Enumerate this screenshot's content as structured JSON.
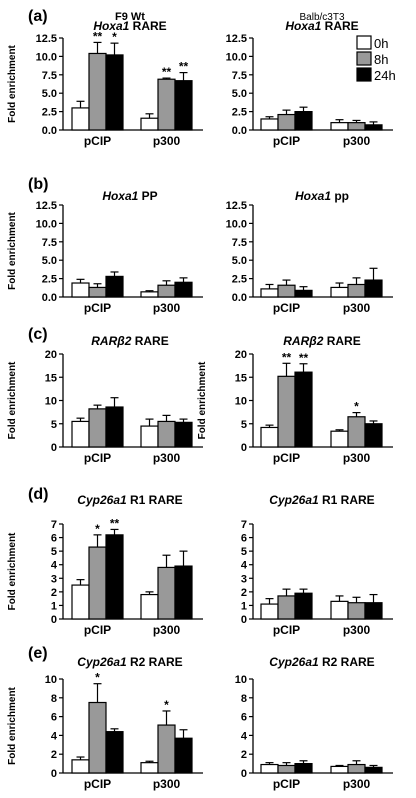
{
  "header": {
    "left_line1": "F9 Wt",
    "right_line1": "Balb/c3T3"
  },
  "legend": [
    "0h",
    "8h",
    "24h"
  ],
  "colors": {
    "0h": "#ffffff",
    "8h": "#999999",
    "24h": "#000000",
    "stroke": "#000000"
  },
  "chart_data": [
    {
      "type": "bar",
      "panel": "(a)",
      "column": "left",
      "gene": "Hoxa1",
      "element": "RARE",
      "ylabel": "Fold enrichment",
      "categories": [
        "pCIP",
        "p300"
      ],
      "ylim": [
        0,
        12.5
      ],
      "yticks": [
        "0.0",
        "2.5",
        "5.0",
        "7.5",
        "10.0",
        "12.5"
      ],
      "series": [
        {
          "name": "0h",
          "values": [
            3.0,
            1.6
          ],
          "errors": [
            0.9,
            0.6
          ]
        },
        {
          "name": "8h",
          "values": [
            10.4,
            6.9
          ],
          "errors": [
            1.5,
            0.15
          ]
        },
        {
          "name": "24h",
          "values": [
            10.2,
            6.7
          ],
          "errors": [
            1.6,
            1.1
          ]
        }
      ],
      "annotations": [
        [
          "",
          "**",
          "*"
        ],
        [
          "",
          "**",
          "**"
        ]
      ]
    },
    {
      "type": "bar",
      "panel": "",
      "column": "right",
      "gene": "Hoxa1",
      "element": "RARE",
      "ylabel": "",
      "categories": [
        "pCIP",
        "p300"
      ],
      "ylim": [
        0,
        12.5
      ],
      "yticks": [
        "0.0",
        "2.5",
        "5.0",
        "7.5",
        "10.0",
        "12.5"
      ],
      "series": [
        {
          "name": "0h",
          "values": [
            1.5,
            1.0
          ],
          "errors": [
            0.3,
            0.4
          ]
        },
        {
          "name": "8h",
          "values": [
            2.1,
            1.0
          ],
          "errors": [
            0.6,
            0.3
          ]
        },
        {
          "name": "24h",
          "values": [
            2.5,
            0.7
          ],
          "errors": [
            0.6,
            0.4
          ]
        }
      ],
      "annotations": [
        [
          "",
          "",
          ""
        ],
        [
          "",
          "",
          ""
        ]
      ]
    },
    {
      "type": "bar",
      "panel": "(b)",
      "column": "left",
      "gene": "Hoxa1",
      "element": "PP",
      "ylabel": "Fold enrichment",
      "categories": [
        "pCIP",
        "p300"
      ],
      "ylim": [
        0,
        12.5
      ],
      "yticks": [
        "0.0",
        "2.5",
        "5.0",
        "7.5",
        "10.0",
        "12.5"
      ],
      "series": [
        {
          "name": "0h",
          "values": [
            1.9,
            0.7
          ],
          "errors": [
            0.5,
            0.15
          ]
        },
        {
          "name": "8h",
          "values": [
            1.3,
            1.6
          ],
          "errors": [
            0.5,
            0.6
          ]
        },
        {
          "name": "24h",
          "values": [
            2.8,
            2.0
          ],
          "errors": [
            0.6,
            0.6
          ]
        }
      ],
      "annotations": [
        [
          "",
          "",
          ""
        ],
        [
          "",
          "",
          ""
        ]
      ]
    },
    {
      "type": "bar",
      "panel": "",
      "column": "right",
      "gene": "Hoxa1",
      "element": "pp",
      "ylabel": "",
      "categories": [
        "pCIP",
        "p300"
      ],
      "ylim": [
        0,
        12.5
      ],
      "yticks": [
        "0.0",
        "2.5",
        "5.0",
        "7.5",
        "10.0",
        "12.5"
      ],
      "series": [
        {
          "name": "0h",
          "values": [
            1.1,
            1.3
          ],
          "errors": [
            0.6,
            0.6
          ]
        },
        {
          "name": "8h",
          "values": [
            1.6,
            1.7
          ],
          "errors": [
            0.7,
            0.9
          ]
        },
        {
          "name": "24h",
          "values": [
            0.9,
            2.3
          ],
          "errors": [
            0.5,
            1.6
          ]
        }
      ],
      "annotations": [
        [
          "",
          "",
          ""
        ],
        [
          "",
          "",
          ""
        ]
      ]
    },
    {
      "type": "bar",
      "panel": "(c)",
      "column": "left",
      "gene": "RARβ2",
      "element": "RARE",
      "ylabel": "Fold enrichment",
      "categories": [
        "pCIP",
        "p300"
      ],
      "ylim": [
        0,
        20
      ],
      "yticks": [
        "0",
        "5",
        "10",
        "15",
        "20"
      ],
      "series": [
        {
          "name": "0h",
          "values": [
            5.5,
            4.5
          ],
          "errors": [
            0.7,
            1.5
          ]
        },
        {
          "name": "8h",
          "values": [
            8.2,
            5.5
          ],
          "errors": [
            0.8,
            1.3
          ]
        },
        {
          "name": "24h",
          "values": [
            8.6,
            5.3
          ],
          "errors": [
            2.0,
            0.7
          ]
        }
      ],
      "annotations": [
        [
          "",
          "",
          ""
        ],
        [
          "",
          "",
          ""
        ]
      ]
    },
    {
      "type": "bar",
      "panel": "",
      "column": "right",
      "gene": "RARβ2",
      "element": "RARE",
      "ylabel": "Fold enrichment",
      "categories": [
        "pCIP",
        "p300"
      ],
      "ylim": [
        0,
        20
      ],
      "yticks": [
        "0",
        "5",
        "10",
        "15",
        "20"
      ],
      "series": [
        {
          "name": "0h",
          "values": [
            4.2,
            3.4
          ],
          "errors": [
            0.5,
            0.3
          ]
        },
        {
          "name": "8h",
          "values": [
            15.2,
            6.5
          ],
          "errors": [
            2.8,
            0.9
          ]
        },
        {
          "name": "24h",
          "values": [
            16.1,
            5.0
          ],
          "errors": [
            1.8,
            0.6
          ]
        }
      ],
      "annotations": [
        [
          "",
          "**",
          "**"
        ],
        [
          "",
          "*",
          ""
        ]
      ]
    },
    {
      "type": "bar",
      "panel": "(d)",
      "column": "left",
      "gene": "Cyp26a1",
      "element": "R1 RARE",
      "ylabel": "Fold enrichment",
      "categories": [
        "pCIP",
        "p300"
      ],
      "ylim": [
        0,
        7
      ],
      "yticks": [
        "0",
        "1",
        "2",
        "3",
        "4",
        "5",
        "6",
        "7"
      ],
      "series": [
        {
          "name": "0h",
          "values": [
            2.5,
            1.8
          ],
          "errors": [
            0.4,
            0.2
          ]
        },
        {
          "name": "8h",
          "values": [
            5.3,
            3.8
          ],
          "errors": [
            0.9,
            0.9
          ]
        },
        {
          "name": "24h",
          "values": [
            6.2,
            3.9
          ],
          "errors": [
            0.4,
            1.1
          ]
        }
      ],
      "annotations": [
        [
          "",
          "*",
          "**"
        ],
        [
          "",
          "",
          ""
        ]
      ]
    },
    {
      "type": "bar",
      "panel": "",
      "column": "right",
      "gene": "Cyp26a1",
      "element": "R1 RARE",
      "ylabel": "",
      "categories": [
        "pCIP",
        "p300"
      ],
      "ylim": [
        0,
        7
      ],
      "yticks": [
        "0",
        "1",
        "2",
        "3",
        "4",
        "5",
        "6",
        "7"
      ],
      "series": [
        {
          "name": "0h",
          "values": [
            1.1,
            1.3
          ],
          "errors": [
            0.4,
            0.4
          ]
        },
        {
          "name": "8h",
          "values": [
            1.7,
            1.2
          ],
          "errors": [
            0.5,
            0.4
          ]
        },
        {
          "name": "24h",
          "values": [
            1.9,
            1.2
          ],
          "errors": [
            0.3,
            0.6
          ]
        }
      ],
      "annotations": [
        [
          "",
          "",
          ""
        ],
        [
          "",
          "",
          ""
        ]
      ]
    },
    {
      "type": "bar",
      "panel": "(e)",
      "column": "left",
      "gene": "Cyp26a1",
      "element": "R2 RARE",
      "ylabel": "Fold enrichment",
      "categories": [
        "pCIP",
        "p300"
      ],
      "ylim": [
        0,
        10
      ],
      "yticks": [
        "0",
        "2",
        "4",
        "6",
        "8",
        "10"
      ],
      "series": [
        {
          "name": "0h",
          "values": [
            1.4,
            1.1
          ],
          "errors": [
            0.3,
            0.15
          ]
        },
        {
          "name": "8h",
          "values": [
            7.5,
            5.1
          ],
          "errors": [
            2.0,
            1.5
          ]
        },
        {
          "name": "24h",
          "values": [
            4.4,
            3.7
          ],
          "errors": [
            0.3,
            0.9
          ]
        }
      ],
      "annotations": [
        [
          "",
          "*",
          ""
        ],
        [
          "",
          "*",
          ""
        ]
      ]
    },
    {
      "type": "bar",
      "panel": "",
      "column": "right",
      "gene": "Cyp26a1",
      "element": "R2 RARE",
      "ylabel": "",
      "categories": [
        "pCIP",
        "p300"
      ],
      "ylim": [
        0,
        10
      ],
      "yticks": [
        "0",
        "2",
        "4",
        "6",
        "8",
        "10"
      ],
      "series": [
        {
          "name": "0h",
          "values": [
            0.9,
            0.7
          ],
          "errors": [
            0.2,
            0.1
          ]
        },
        {
          "name": "8h",
          "values": [
            0.8,
            0.9
          ],
          "errors": [
            0.3,
            0.4
          ]
        },
        {
          "name": "24h",
          "values": [
            1.0,
            0.6
          ],
          "errors": [
            0.3,
            0.2
          ]
        }
      ],
      "annotations": [
        [
          "",
          "",
          ""
        ],
        [
          "",
          "",
          ""
        ]
      ]
    }
  ]
}
